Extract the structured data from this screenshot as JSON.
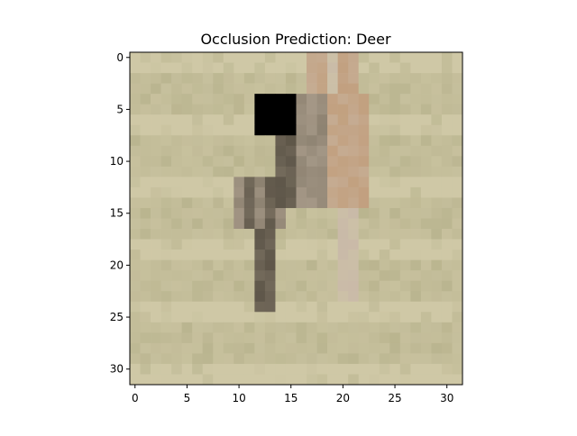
{
  "chart_data": {
    "type": "heatmap",
    "title": "Occlusion Prediction: Deer",
    "xlabel": "",
    "ylabel": "",
    "grid_size": 32,
    "x_ticks": [
      0,
      5,
      10,
      15,
      20,
      25,
      30
    ],
    "y_ticks": [
      0,
      5,
      10,
      15,
      20,
      25,
      30
    ],
    "xlim": [
      -0.5,
      31.5
    ],
    "ylim": [
      31.5,
      -0.5
    ],
    "occlusion_patch": {
      "row_start": 4,
      "row_end": 7,
      "col_start": 12,
      "col_end": 15
    },
    "colors": {
      "occlusion": "#000000",
      "grass_base": "#c2bc98",
      "grass_light": "#cfc8a6",
      "grass_dark": "#aaa77f",
      "deer_dark": "#5e5649",
      "deer_mid": "#8c8170",
      "deer_light": "#c9b9a8",
      "deer_tan": "#c2a07f"
    }
  }
}
